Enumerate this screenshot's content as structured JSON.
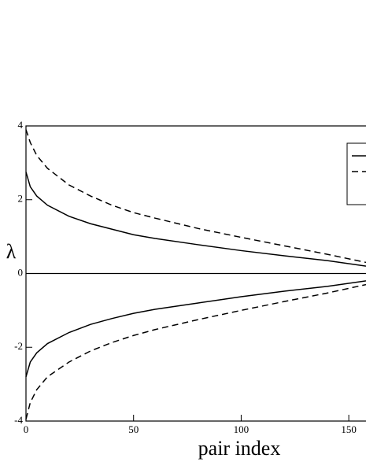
{
  "chart_data": {
    "type": "line",
    "x_label": "pair index",
    "y_label": "λ",
    "x": [
      0,
      2,
      5,
      10,
      20,
      30,
      40,
      50,
      60,
      80,
      100,
      120,
      140,
      158
    ],
    "series": [
      {
        "color": "#000000",
        "line_style": "solid",
        "values": [
          2.75,
          2.35,
          2.1,
          1.85,
          1.55,
          1.35,
          1.2,
          1.05,
          0.95,
          0.78,
          0.62,
          0.48,
          0.35,
          0.2
        ]
      },
      {
        "color": "#000000",
        "line_style": "dashed",
        "values": [
          3.9,
          3.55,
          3.2,
          2.85,
          2.4,
          2.1,
          1.85,
          1.65,
          1.5,
          1.22,
          0.98,
          0.75,
          0.52,
          0.3
        ]
      },
      {
        "color": "#000000",
        "line_style": "solid",
        "values": [
          -2.8,
          -2.4,
          -2.15,
          -1.9,
          -1.6,
          -1.38,
          -1.22,
          -1.08,
          -0.97,
          -0.8,
          -0.63,
          -0.48,
          -0.35,
          -0.2
        ]
      },
      {
        "color": "#000000",
        "line_style": "dashed",
        "values": [
          -3.95,
          -3.5,
          -3.15,
          -2.8,
          -2.4,
          -2.1,
          -1.87,
          -1.68,
          -1.52,
          -1.25,
          -1.0,
          -0.76,
          -0.53,
          -0.3
        ]
      }
    ],
    "xlim": [
      0,
      158
    ],
    "ylim": [
      -4,
      4
    ],
    "xticks": [
      0,
      50,
      100,
      150
    ],
    "yticks": [
      -4,
      -2,
      0,
      2,
      4
    ],
    "zero_line": true,
    "legend": "upper right"
  }
}
